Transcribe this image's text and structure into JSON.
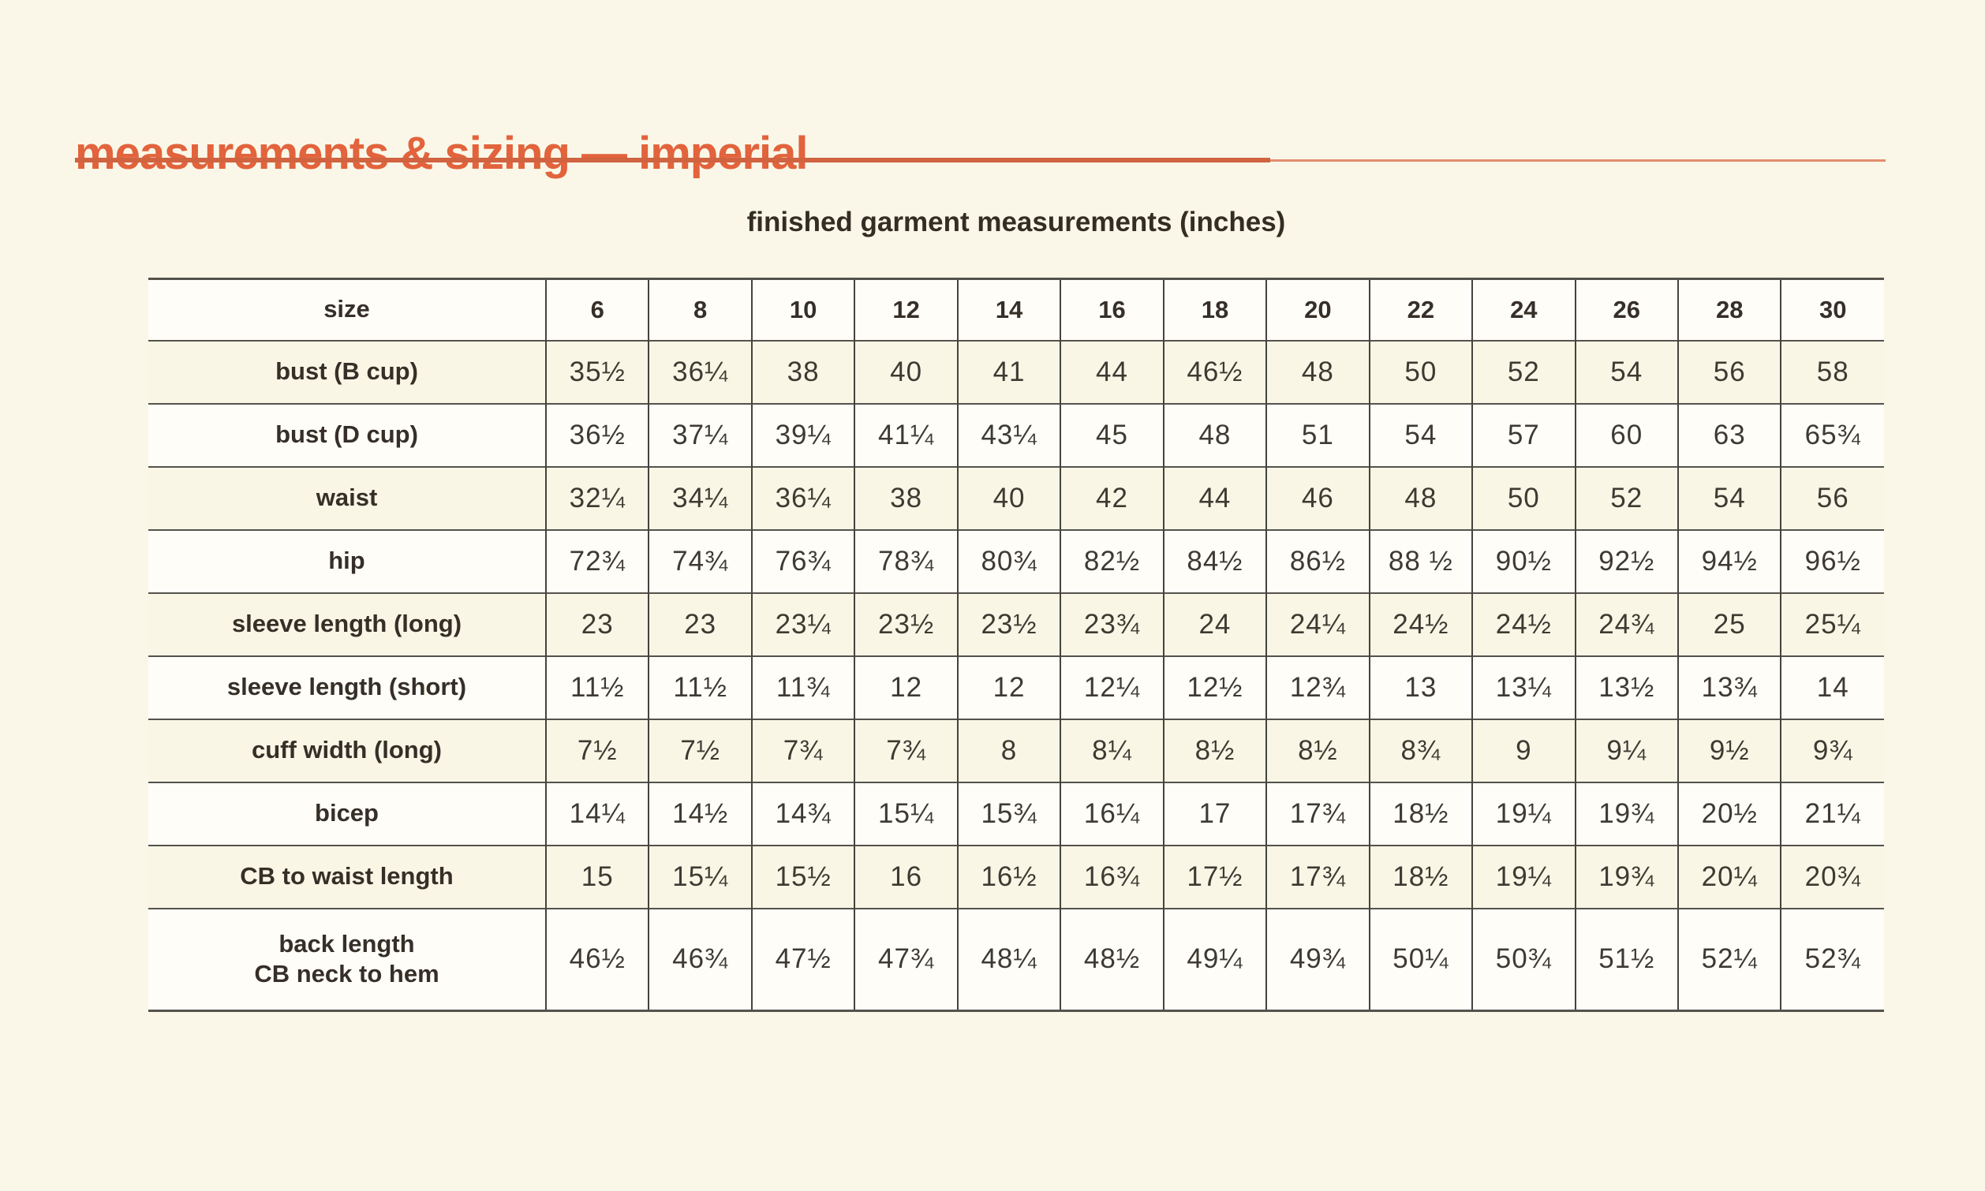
{
  "page": {
    "title": "measurements & sizing — imperial",
    "subtitle": "finished garment measurements (inches)",
    "colors": {
      "background": "#faf7e8",
      "accent_orange": "#e2633c",
      "rule_left": "#d06340",
      "rule_right": "#e28d6d",
      "row_cream": "#f9f6e6",
      "row_white": "#fefdf8",
      "border": "#54524b",
      "label_text": "#362f27",
      "value_text": "#3e3a32"
    }
  },
  "table": {
    "corner_label": "size",
    "sizes": [
      "6",
      "8",
      "10",
      "12",
      "14",
      "16",
      "18",
      "20",
      "22",
      "24",
      "26",
      "28",
      "30"
    ],
    "rows": [
      {
        "label": "bust (B cup)",
        "values": [
          "35½",
          "36¼",
          "38",
          "40",
          "41",
          "44",
          "46½",
          "48",
          "50",
          "52",
          "54",
          "56",
          "58"
        ]
      },
      {
        "label": "bust (D cup)",
        "values": [
          "36½",
          "37¼",
          "39¼",
          "41¼",
          "43¼",
          "45",
          "48",
          "51",
          "54",
          "57",
          "60",
          "63",
          "65¾"
        ]
      },
      {
        "label": "waist",
        "values": [
          "32¼",
          "34¼",
          "36¼",
          "38",
          "40",
          "42",
          "44",
          "46",
          "48",
          "50",
          "52",
          "54",
          "56"
        ]
      },
      {
        "label": "hip",
        "values": [
          "72¾",
          "74¾",
          "76¾",
          "78¾",
          "80¾",
          "82½",
          "84½",
          "86½",
          "88 ½",
          "90½",
          "92½",
          "94½",
          "96½"
        ]
      },
      {
        "label": "sleeve length (long)",
        "values": [
          "23",
          "23",
          "23¼",
          "23½",
          "23½",
          "23¾",
          "24",
          "24¼",
          "24½",
          "24½",
          "24¾",
          "25",
          "25¼"
        ]
      },
      {
        "label": "sleeve length (short)",
        "values": [
          "11½",
          "11½",
          "11¾",
          "12",
          "12",
          "12¼",
          "12½",
          "12¾",
          "13",
          "13¼",
          "13½",
          "13¾",
          "14"
        ]
      },
      {
        "label": "cuff width (long)",
        "values": [
          "7½",
          "7½",
          "7¾",
          "7¾",
          "8",
          "8¼",
          "8½",
          "8½",
          "8¾",
          "9",
          "9¼",
          "9½",
          "9¾"
        ]
      },
      {
        "label": "bicep",
        "values": [
          "14¼",
          "14½",
          "14¾",
          "15¼",
          "15¾",
          "16¼",
          "17",
          "17¾",
          "18½",
          "19¼",
          "19¾",
          "20½",
          "21¼"
        ]
      },
      {
        "label": "CB to waist length",
        "values": [
          "15",
          "15¼",
          "15½",
          "16",
          "16½",
          "16¾",
          "17½",
          "17¾",
          "18½",
          "19¼",
          "19¾",
          "20¼",
          "20¾"
        ]
      },
      {
        "label": "back length\nCB neck to hem",
        "values": [
          "46½",
          "46¾",
          "47½",
          "47¾",
          "48¼",
          "48½",
          "49¼",
          "49¾",
          "50¼",
          "50¾",
          "51½",
          "52¼",
          "52¾"
        ]
      }
    ]
  }
}
